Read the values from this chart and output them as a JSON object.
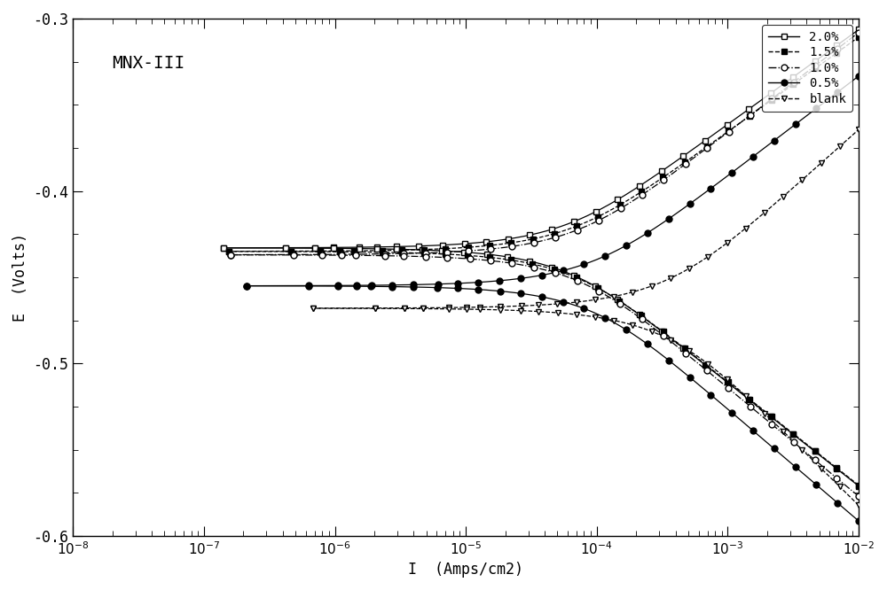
{
  "title": "MNX-III",
  "xlabel": "I  (Amps/cm2)",
  "ylabel": "E  (Volts)",
  "xlim_exp": [
    -8,
    -2
  ],
  "ylim": [
    -0.6,
    -0.3
  ],
  "yticks": [
    -0.6,
    -0.5,
    -0.4,
    -0.3
  ],
  "background_color": "#ffffff",
  "series": [
    {
      "label": "2.0%",
      "color": "black",
      "marker": "s",
      "markerfacecolor": "white",
      "markeredgecolor": "black",
      "linestyle": "-",
      "corr_pot": -0.433,
      "icorr": 5e-05,
      "ba": 0.055,
      "bc": 0.06
    },
    {
      "label": "1.5%",
      "color": "black",
      "marker": "s",
      "markerfacecolor": "black",
      "markeredgecolor": "black",
      "linestyle": "--",
      "corr_pot": -0.435,
      "icorr": 5.5e-05,
      "ba": 0.055,
      "bc": 0.06
    },
    {
      "label": "1.0%",
      "color": "black",
      "marker": "o",
      "markerfacecolor": "white",
      "markeredgecolor": "black",
      "linestyle": "-.",
      "corr_pot": -0.437,
      "icorr": 6e-05,
      "ba": 0.058,
      "bc": 0.063
    },
    {
      "label": "0.5%",
      "color": "black",
      "marker": "o",
      "markerfacecolor": "black",
      "markeredgecolor": "black",
      "linestyle": "-",
      "corr_pot": -0.455,
      "icorr": 8e-05,
      "ba": 0.058,
      "bc": 0.065
    },
    {
      "label": "blank",
      "color": "black",
      "marker": "v",
      "markerfacecolor": "white",
      "markeredgecolor": "black",
      "linestyle": "--",
      "corr_pot": -0.468,
      "icorr": 0.0003,
      "ba": 0.068,
      "bc": 0.075
    }
  ]
}
